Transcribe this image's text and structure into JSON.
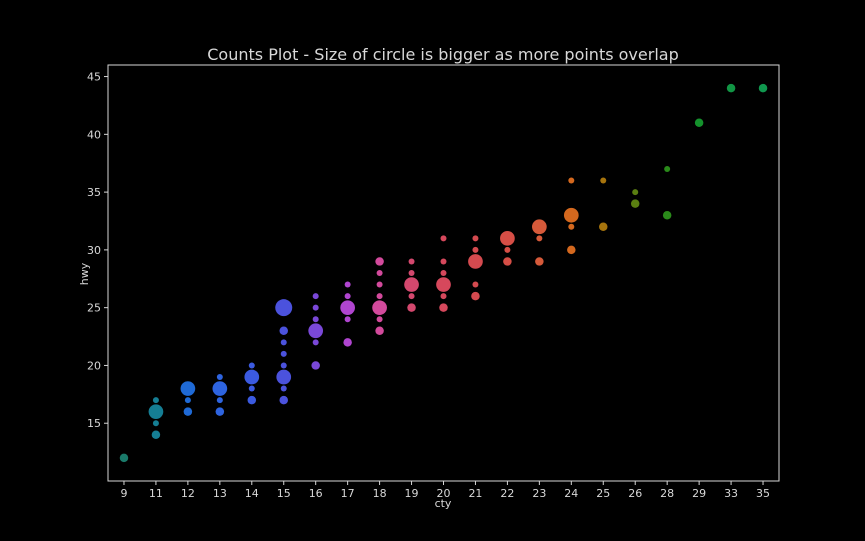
{
  "chart_data": {
    "type": "scatter",
    "title": "Counts Plot - Size of circle is bigger as more points overlap",
    "xlabel": "cty",
    "ylabel": "hwy",
    "x_categories": [
      "9",
      "11",
      "12",
      "13",
      "14",
      "15",
      "16",
      "17",
      "18",
      "19",
      "20",
      "21",
      "22",
      "23",
      "24",
      "25",
      "26",
      "28",
      "29",
      "33",
      "35"
    ],
    "ylim": [
      10,
      46
    ],
    "yticks": [
      15,
      20,
      25,
      30,
      35,
      40,
      45
    ],
    "grid": false,
    "colors": {
      "background": "#000000",
      "axes": "#d8d8d8",
      "text": "#d8d8d8"
    },
    "points": [
      {
        "x": "9",
        "y": 12,
        "count": 2,
        "color": "#1a7a6a"
      },
      {
        "x": "11",
        "y": 14,
        "count": 2,
        "color": "#157e94"
      },
      {
        "x": "11",
        "y": 15,
        "count": 1,
        "color": "#157e94"
      },
      {
        "x": "11",
        "y": 16,
        "count": 6,
        "color": "#157e94"
      },
      {
        "x": "11",
        "y": 17,
        "count": 1,
        "color": "#157e94"
      },
      {
        "x": "12",
        "y": 16,
        "count": 2,
        "color": "#1f6ad6"
      },
      {
        "x": "12",
        "y": 17,
        "count": 1,
        "color": "#1f6ad6"
      },
      {
        "x": "12",
        "y": 18,
        "count": 6,
        "color": "#1f6ad6"
      },
      {
        "x": "13",
        "y": 16,
        "count": 2,
        "color": "#2e64e0"
      },
      {
        "x": "13",
        "y": 17,
        "count": 1,
        "color": "#2e64e0"
      },
      {
        "x": "13",
        "y": 18,
        "count": 6,
        "color": "#2e64e0"
      },
      {
        "x": "13",
        "y": 19,
        "count": 1,
        "color": "#2e64e0"
      },
      {
        "x": "14",
        "y": 17,
        "count": 2,
        "color": "#3b5ae0"
      },
      {
        "x": "14",
        "y": 18,
        "count": 1,
        "color": "#3b5ae0"
      },
      {
        "x": "14",
        "y": 19,
        "count": 6,
        "color": "#3b5ae0"
      },
      {
        "x": "14",
        "y": 20,
        "count": 1,
        "color": "#3b5ae0"
      },
      {
        "x": "15",
        "y": 17,
        "count": 2,
        "color": "#4b52dd"
      },
      {
        "x": "15",
        "y": 18,
        "count": 1,
        "color": "#4b52dd"
      },
      {
        "x": "15",
        "y": 19,
        "count": 6,
        "color": "#4b52dd"
      },
      {
        "x": "15",
        "y": 20,
        "count": 1,
        "color": "#4b52dd"
      },
      {
        "x": "15",
        "y": 21,
        "count": 1,
        "color": "#4b52dd"
      },
      {
        "x": "15",
        "y": 22,
        "count": 1,
        "color": "#4b52dd"
      },
      {
        "x": "15",
        "y": 23,
        "count": 2,
        "color": "#4b52dd"
      },
      {
        "x": "15",
        "y": 25,
        "count": 8,
        "color": "#4b52dd"
      },
      {
        "x": "16",
        "y": 20,
        "count": 2,
        "color": "#7a48d8"
      },
      {
        "x": "16",
        "y": 22,
        "count": 1,
        "color": "#7a48d8"
      },
      {
        "x": "16",
        "y": 23,
        "count": 6,
        "color": "#7a48d8"
      },
      {
        "x": "16",
        "y": 24,
        "count": 1,
        "color": "#7a48d8"
      },
      {
        "x": "16",
        "y": 25,
        "count": 1,
        "color": "#7a48d8"
      },
      {
        "x": "16",
        "y": 26,
        "count": 1,
        "color": "#7a48d8"
      },
      {
        "x": "17",
        "y": 22,
        "count": 2,
        "color": "#b045d0"
      },
      {
        "x": "17",
        "y": 24,
        "count": 1,
        "color": "#b045d0"
      },
      {
        "x": "17",
        "y": 25,
        "count": 6,
        "color": "#b045d0"
      },
      {
        "x": "17",
        "y": 26,
        "count": 1,
        "color": "#b045d0"
      },
      {
        "x": "17",
        "y": 27,
        "count": 1,
        "color": "#b045d0"
      },
      {
        "x": "18",
        "y": 23,
        "count": 2,
        "color": "#d34a9c"
      },
      {
        "x": "18",
        "y": 24,
        "count": 1,
        "color": "#d34a9c"
      },
      {
        "x": "18",
        "y": 25,
        "count": 6,
        "color": "#d34a9c"
      },
      {
        "x": "18",
        "y": 26,
        "count": 1,
        "color": "#d34a9c"
      },
      {
        "x": "18",
        "y": 27,
        "count": 1,
        "color": "#d34a9c"
      },
      {
        "x": "18",
        "y": 28,
        "count": 1,
        "color": "#d34a9c"
      },
      {
        "x": "18",
        "y": 29,
        "count": 2,
        "color": "#d34a9c"
      },
      {
        "x": "19",
        "y": 25,
        "count": 2,
        "color": "#d4486e"
      },
      {
        "x": "19",
        "y": 26,
        "count": 1,
        "color": "#d4486e"
      },
      {
        "x": "19",
        "y": 27,
        "count": 6,
        "color": "#d4486e"
      },
      {
        "x": "19",
        "y": 28,
        "count": 1,
        "color": "#d4486e"
      },
      {
        "x": "19",
        "y": 29,
        "count": 1,
        "color": "#d4486e"
      },
      {
        "x": "20",
        "y": 25,
        "count": 2,
        "color": "#d6485c"
      },
      {
        "x": "20",
        "y": 26,
        "count": 1,
        "color": "#d6485c"
      },
      {
        "x": "20",
        "y": 27,
        "count": 6,
        "color": "#d6485c"
      },
      {
        "x": "20",
        "y": 28,
        "count": 1,
        "color": "#d6485c"
      },
      {
        "x": "20",
        "y": 29,
        "count": 1,
        "color": "#d6485c"
      },
      {
        "x": "20",
        "y": 31,
        "count": 1,
        "color": "#d6485c"
      },
      {
        "x": "21",
        "y": 26,
        "count": 2,
        "color": "#d44a4f"
      },
      {
        "x": "21",
        "y": 27,
        "count": 1,
        "color": "#d44a4f"
      },
      {
        "x": "21",
        "y": 29,
        "count": 6,
        "color": "#d44a4f"
      },
      {
        "x": "21",
        "y": 30,
        "count": 1,
        "color": "#d44a4f"
      },
      {
        "x": "21",
        "y": 31,
        "count": 1,
        "color": "#d44a4f"
      },
      {
        "x": "22",
        "y": 29,
        "count": 2,
        "color": "#d64e46"
      },
      {
        "x": "22",
        "y": 30,
        "count": 1,
        "color": "#d64e46"
      },
      {
        "x": "22",
        "y": 31,
        "count": 6,
        "color": "#d64e46"
      },
      {
        "x": "23",
        "y": 29,
        "count": 2,
        "color": "#d65a3a"
      },
      {
        "x": "23",
        "y": 31,
        "count": 1,
        "color": "#d65a3a"
      },
      {
        "x": "23",
        "y": 32,
        "count": 6,
        "color": "#d65a3a"
      },
      {
        "x": "24",
        "y": 30,
        "count": 2,
        "color": "#d4681e"
      },
      {
        "x": "24",
        "y": 32,
        "count": 1,
        "color": "#d4681e"
      },
      {
        "x": "24",
        "y": 33,
        "count": 6,
        "color": "#d4681e"
      },
      {
        "x": "24",
        "y": 36,
        "count": 1,
        "color": "#d4681e"
      },
      {
        "x": "25",
        "y": 32,
        "count": 2,
        "color": "#a6740d"
      },
      {
        "x": "25",
        "y": 36,
        "count": 1,
        "color": "#a6740d"
      },
      {
        "x": "26",
        "y": 34,
        "count": 2,
        "color": "#5a7f11"
      },
      {
        "x": "26",
        "y": 35,
        "count": 1,
        "color": "#5a7f11"
      },
      {
        "x": "28",
        "y": 33,
        "count": 2,
        "color": "#2a8a1a"
      },
      {
        "x": "28",
        "y": 37,
        "count": 1,
        "color": "#2a8a1a"
      },
      {
        "x": "29",
        "y": 41,
        "count": 2,
        "color": "#14922c"
      },
      {
        "x": "33",
        "y": 44,
        "count": 2,
        "color": "#119544"
      },
      {
        "x": "35",
        "y": 44,
        "count": 2,
        "color": "#10974e"
      }
    ]
  }
}
